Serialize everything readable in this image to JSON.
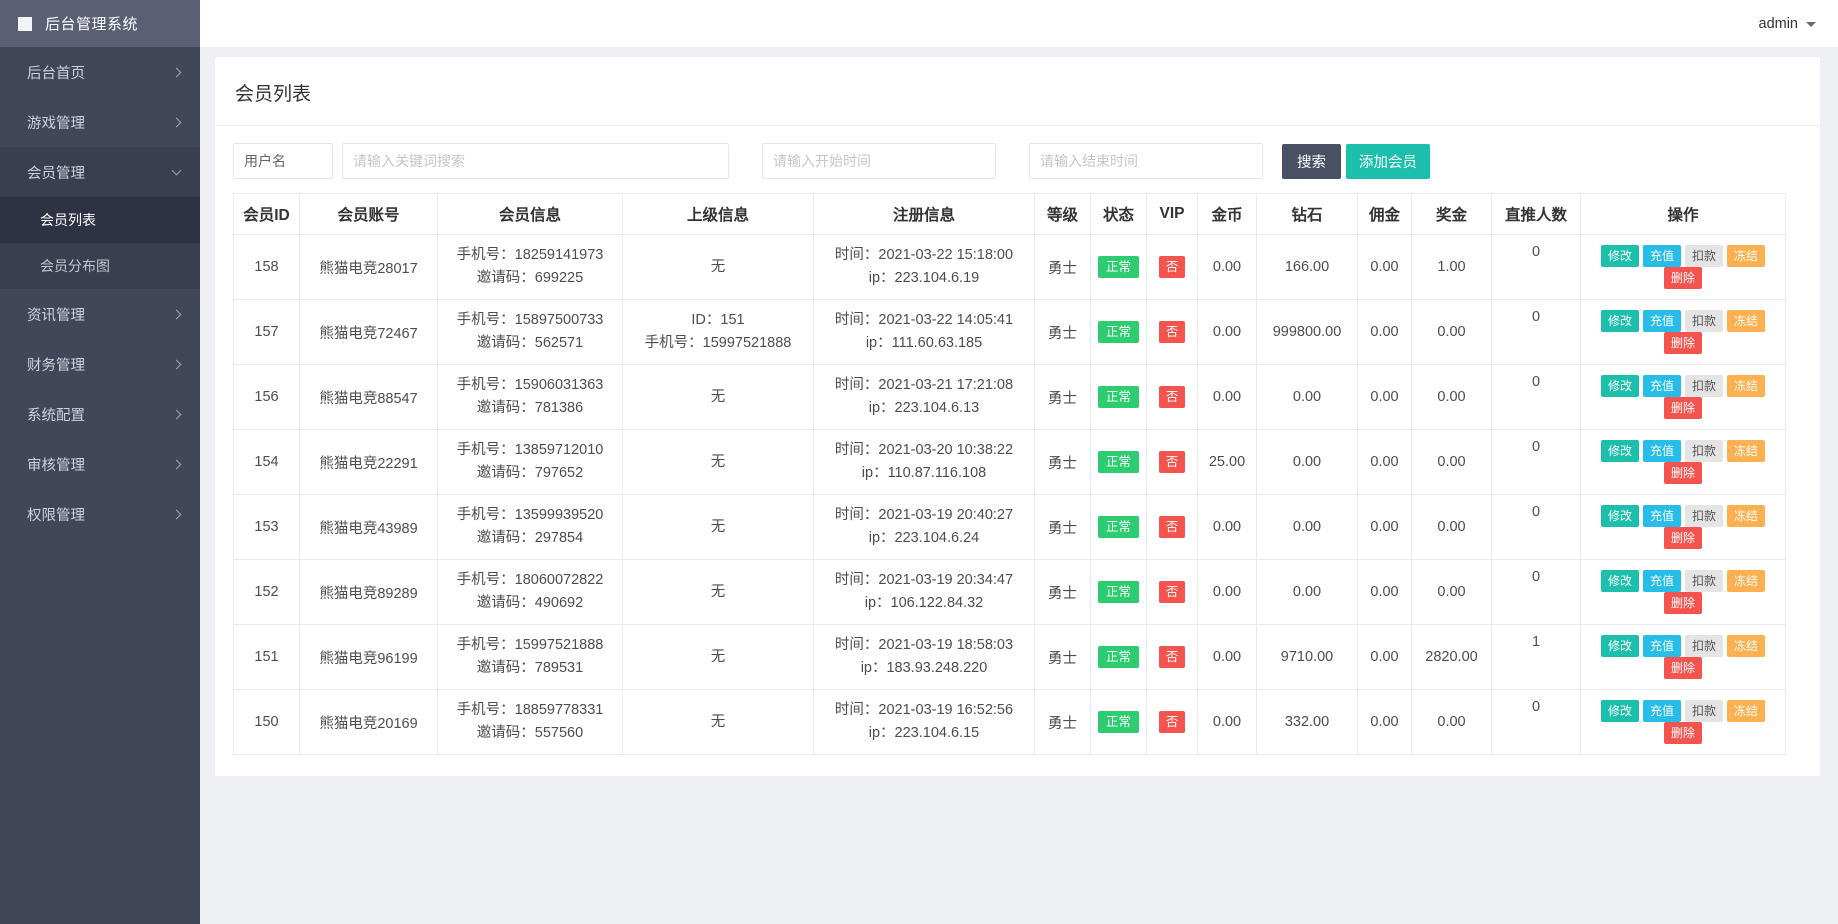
{
  "app": {
    "title": "后台管理系统",
    "user": "admin"
  },
  "sidebar": {
    "items": [
      {
        "label": "后台首页"
      },
      {
        "label": "游戏管理"
      },
      {
        "label": "会员管理",
        "children": [
          {
            "label": "会员列表"
          },
          {
            "label": "会员分布图"
          }
        ]
      },
      {
        "label": "资讯管理"
      },
      {
        "label": "财务管理"
      },
      {
        "label": "系统配置"
      },
      {
        "label": "审核管理"
      },
      {
        "label": "权限管理"
      }
    ]
  },
  "page": {
    "title": "会员列表"
  },
  "filters": {
    "username_value": "用户名",
    "keyword_placeholder": "请输入关键词搜索",
    "start_placeholder": "请输入开始时间",
    "end_placeholder": "请输入结束时间",
    "search_label": "搜索",
    "add_member_label": "添加会员"
  },
  "colors": {
    "accent_teal": "#1cbfac",
    "search_btn": "#4a5064",
    "status_normal": "#2ecc71",
    "vip_no": "#f4534e",
    "recharge_cyan": "#28bde8",
    "freeze_orange": "#fcb04f",
    "delete_red": "#f4534e",
    "sidebar_bg": "#424659",
    "logo_bar_bg": "#5a5f73"
  },
  "table": {
    "columns": [
      "会员ID",
      "会员账号",
      "会员信息",
      "上级信息",
      "注册信息",
      "等级",
      "状态",
      "VIP",
      "金币",
      "钻石",
      "佣金",
      "奖金",
      "直推人数",
      "操作"
    ],
    "actions": [
      {
        "name": "modify",
        "label": "修改"
      },
      {
        "name": "recharge",
        "label": "充值"
      },
      {
        "name": "deduct",
        "label": "扣款"
      },
      {
        "name": "freeze",
        "label": "冻结"
      },
      {
        "name": "delete",
        "label": "删除"
      }
    ],
    "rows": [
      {
        "id": "158",
        "account": "熊猫电竞28017",
        "info": [
          "手机号：18259141973",
          "邀请码：699225"
        ],
        "parent": [
          "无"
        ],
        "reg": [
          "时间：2021-03-22 15:18:00",
          "ip：223.104.6.19"
        ],
        "level": "勇士",
        "status": "正常",
        "vip": "否",
        "gold": "0.00",
        "diamond": "166.00",
        "commission": "0.00",
        "bonus": "1.00",
        "referrals": "0"
      },
      {
        "id": "157",
        "account": "熊猫电竞72467",
        "info": [
          "手机号：15897500733",
          "邀请码：562571"
        ],
        "parent": [
          "ID：151",
          "手机号：15997521888"
        ],
        "reg": [
          "时间：2021-03-22 14:05:41",
          "ip：111.60.63.185"
        ],
        "level": "勇士",
        "status": "正常",
        "vip": "否",
        "gold": "0.00",
        "diamond": "999800.00",
        "commission": "0.00",
        "bonus": "0.00",
        "referrals": "0"
      },
      {
        "id": "156",
        "account": "熊猫电竞88547",
        "info": [
          "手机号：15906031363",
          "邀请码：781386"
        ],
        "parent": [
          "无"
        ],
        "reg": [
          "时间：2021-03-21 17:21:08",
          "ip：223.104.6.13"
        ],
        "level": "勇士",
        "status": "正常",
        "vip": "否",
        "gold": "0.00",
        "diamond": "0.00",
        "commission": "0.00",
        "bonus": "0.00",
        "referrals": "0"
      },
      {
        "id": "154",
        "account": "熊猫电竞22291",
        "info": [
          "手机号：13859712010",
          "邀请码：797652"
        ],
        "parent": [
          "无"
        ],
        "reg": [
          "时间：2021-03-20 10:38:22",
          "ip：110.87.116.108"
        ],
        "level": "勇士",
        "status": "正常",
        "vip": "否",
        "gold": "25.00",
        "diamond": "0.00",
        "commission": "0.00",
        "bonus": "0.00",
        "referrals": "0"
      },
      {
        "id": "153",
        "account": "熊猫电竞43989",
        "info": [
          "手机号：13599939520",
          "邀请码：297854"
        ],
        "parent": [
          "无"
        ],
        "reg": [
          "时间：2021-03-19 20:40:27",
          "ip：223.104.6.24"
        ],
        "level": "勇士",
        "status": "正常",
        "vip": "否",
        "gold": "0.00",
        "diamond": "0.00",
        "commission": "0.00",
        "bonus": "0.00",
        "referrals": "0"
      },
      {
        "id": "152",
        "account": "熊猫电竞89289",
        "info": [
          "手机号：18060072822",
          "邀请码：490692"
        ],
        "parent": [
          "无"
        ],
        "reg": [
          "时间：2021-03-19 20:34:47",
          "ip：106.122.84.32"
        ],
        "level": "勇士",
        "status": "正常",
        "vip": "否",
        "gold": "0.00",
        "diamond": "0.00",
        "commission": "0.00",
        "bonus": "0.00",
        "referrals": "0"
      },
      {
        "id": "151",
        "account": "熊猫电竞96199",
        "info": [
          "手机号：15997521888",
          "邀请码：789531"
        ],
        "parent": [
          "无"
        ],
        "reg": [
          "时间：2021-03-19 18:58:03",
          "ip：183.93.248.220"
        ],
        "level": "勇士",
        "status": "正常",
        "vip": "否",
        "gold": "0.00",
        "diamond": "9710.00",
        "commission": "0.00",
        "bonus": "2820.00",
        "referrals": "1"
      },
      {
        "id": "150",
        "account": "熊猫电竞20169",
        "info": [
          "手机号：18859778331",
          "邀请码：557560"
        ],
        "parent": [
          "无"
        ],
        "reg": [
          "时间：2021-03-19 16:52:56",
          "ip：223.104.6.15"
        ],
        "level": "勇士",
        "status": "正常",
        "vip": "否",
        "gold": "0.00",
        "diamond": "332.00",
        "commission": "0.00",
        "bonus": "0.00",
        "referrals": "0"
      }
    ]
  }
}
